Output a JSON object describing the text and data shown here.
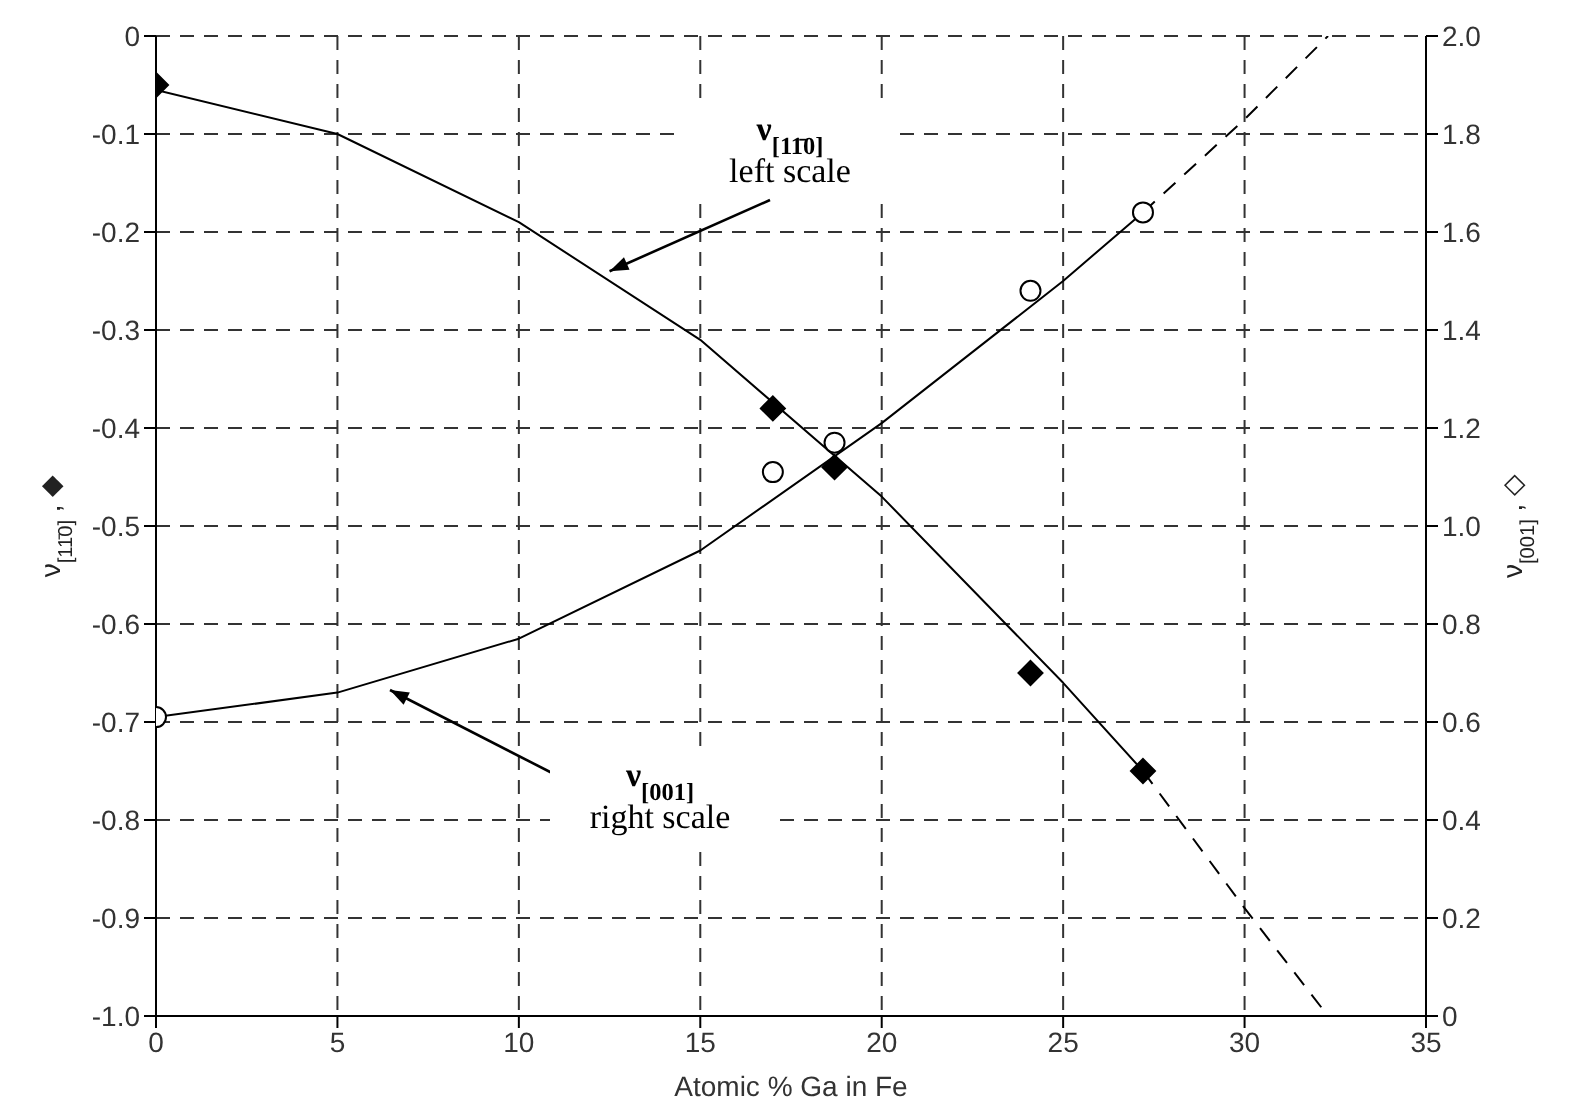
{
  "chart_data": {
    "type": "scatter",
    "xlabel": "Atomic % Ga in Fe",
    "ylabel": "ν$_{[11̄0]}$ , ◆",
    "y2label": "ν$_{[001]}$ , ◇",
    "xlim": [
      0,
      35
    ],
    "xticks": [
      0,
      5,
      10,
      15,
      20,
      25,
      30,
      35
    ],
    "ylim": [
      -1,
      0
    ],
    "yticks": [
      {
        "value": -1,
        "label": "-1.0"
      },
      -0.9,
      -0.8,
      -0.7,
      -0.6,
      -0.5,
      -0.4,
      -0.3,
      -0.2,
      -0.1,
      0
    ],
    "y2lim": [
      0,
      2
    ],
    "y2ticks": [
      0,
      0.2,
      0.4,
      0.6,
      0.8,
      {
        "value": 1,
        "label": "1.0"
      },
      1.2,
      1.4,
      1.6,
      1.8,
      {
        "value": 2,
        "label": "2.0"
      }
    ],
    "grid": true,
    "annotations": [
      {
        "text": "ν$_{[11̄0]}$ left scale",
        "x": 12.5,
        "y": -0.24
      },
      "ν$_{[001]}$ right scale"
    ],
    "series": [
      {
        "type": "scatter",
        "marker": "diamond",
        "color": "#000000",
        "x": [
          0,
          17,
          18.7,
          24.1,
          27.2
        ],
        "values": [
          -0.05,
          -0.38,
          -0.44,
          -0.65,
          -0.75
        ]
      },
      {
        "type": "scatter",
        "marker": "circle",
        "axis": "y2",
        "color": "#000000",
        "x": [
          0,
          17,
          18.7,
          24.1,
          27.2
        ],
        "values": [
          0.61,
          1.11,
          1.17,
          1.48,
          1.64
        ]
      },
      {
        "type": "line",
        "line_style": "solid",
        "color": "#000000",
        "x": [
          0,
          5,
          10,
          15,
          20,
          25,
          27.2
        ],
        "values": [
          -0.055,
          -0.1,
          -0.19,
          -0.31,
          -0.47,
          -0.66,
          -0.75
        ]
      },
      {
        "type": "line",
        "line_style": "dashed",
        "color": "#000000",
        "x": [
          27.2,
          30,
          32.3
        ],
        "values": [
          -0.75,
          -0.89,
          -1.0
        ]
      },
      {
        "type": "line",
        "line_style": "solid",
        "axis": "y2",
        "color": "#000000",
        "x": [
          0,
          5,
          10,
          15,
          20,
          25,
          27.2
        ],
        "values": [
          0.61,
          0.66,
          0.77,
          0.95,
          1.21,
          1.5,
          1.64
        ]
      },
      {
        "type": "line",
        "line_style": "dashed",
        "axis": "y2",
        "color": "#000000",
        "x": [
          27.2,
          30,
          32.3
        ],
        "values": [
          1.64,
          1.83,
          2.0
        ]
      }
    ]
  }
}
